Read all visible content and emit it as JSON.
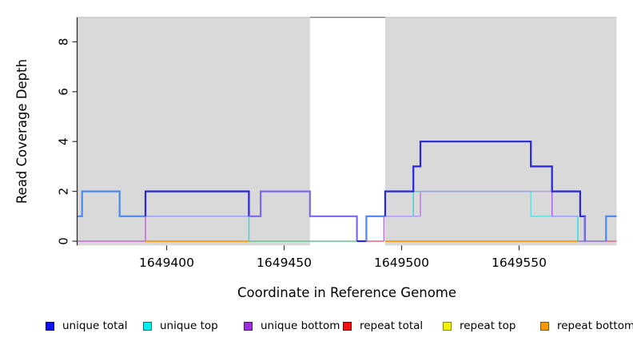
{
  "chart_data": {
    "type": "line",
    "subtype": "step-coverage-plot",
    "title": "",
    "xlabel": "Coordinate in Reference Genome",
    "ylabel": "Read Coverage Depth",
    "x_ticks": [
      1649400,
      1649450,
      1649500,
      1649550
    ],
    "x_tick_labels": [
      "1649400",
      "1649450",
      "1649500",
      "1649550"
    ],
    "y_ticks": [
      0,
      2,
      4,
      6,
      8
    ],
    "y_tick_labels": [
      "0",
      "2",
      "4",
      "6",
      "8"
    ],
    "xlim": [
      1649362,
      1649591.5
    ],
    "ylim": [
      0,
      9
    ],
    "grid": false,
    "legend_position": "bottom",
    "highlight_regions": [
      {
        "name": "shaded-left",
        "x_start": 1649362,
        "x_end": 1649461,
        "color": "#d9d9d9"
      },
      {
        "name": "shaded-right",
        "x_start": 1649493,
        "x_end": 1649591.5,
        "color": "#d9d9d9"
      }
    ],
    "series": [
      {
        "name": "unique total",
        "color": "#1111ee",
        "steps": [
          [
            1649362,
            1
          ],
          [
            1649364,
            2
          ],
          [
            1649380,
            1
          ],
          [
            1649391,
            2
          ],
          [
            1649435,
            1
          ],
          [
            1649440,
            2
          ],
          [
            1649461,
            1
          ],
          [
            1649481,
            0
          ],
          [
            1649485,
            1
          ],
          [
            1649493,
            2
          ],
          [
            1649505,
            3
          ],
          [
            1649508,
            4
          ],
          [
            1649555,
            3
          ],
          [
            1649564,
            2
          ],
          [
            1649576,
            1
          ],
          [
            1649578,
            0
          ],
          [
            1649587,
            1
          ],
          [
            1649592,
            1
          ]
        ]
      },
      {
        "name": "unique top",
        "color": "#00eeee",
        "steps": [
          [
            1649362,
            1
          ],
          [
            1649364,
            2
          ],
          [
            1649380,
            1
          ],
          [
            1649435,
            0
          ],
          [
            1649485,
            1
          ],
          [
            1649505,
            2
          ],
          [
            1649555,
            1
          ],
          [
            1649575,
            0
          ],
          [
            1649587,
            1
          ],
          [
            1649592,
            1
          ]
        ]
      },
      {
        "name": "unique bottom",
        "color": "#9b30d9",
        "steps": [
          [
            1649362,
            0
          ],
          [
            1649391,
            1
          ],
          [
            1649440,
            2
          ],
          [
            1649461,
            1
          ],
          [
            1649481,
            0
          ],
          [
            1649493,
            1
          ],
          [
            1649508,
            2
          ],
          [
            1649564,
            1
          ],
          [
            1649578,
            0
          ],
          [
            1649592,
            0
          ]
        ]
      },
      {
        "name": "repeat total",
        "color": "#ee1111",
        "steps": [
          [
            1649362,
            0
          ],
          [
            1649592,
            0
          ]
        ]
      },
      {
        "name": "repeat top",
        "color": "#f2f200",
        "steps": [
          [
            1649362,
            0
          ],
          [
            1649592,
            0
          ]
        ]
      },
      {
        "name": "repeat bottom",
        "color": "#f59b00",
        "steps": [
          [
            1649362,
            0
          ],
          [
            1649592,
            0
          ]
        ]
      }
    ],
    "legend_entries": [
      {
        "label": "unique total",
        "fill": "#1111ee",
        "border": "#000088"
      },
      {
        "label": "unique top",
        "fill": "#00eeee",
        "border": "#007777"
      },
      {
        "label": "unique bottom",
        "fill": "#9b30d9",
        "border": "#551177"
      },
      {
        "label": "repeat total",
        "fill": "#ee1111",
        "border": "#770000"
      },
      {
        "label": "repeat top",
        "fill": "#f2f200",
        "border": "#888800"
      },
      {
        "label": "repeat bottom",
        "fill": "#f59b00",
        "border": "#885500"
      }
    ]
  },
  "render": {
    "axis_color": "#222222",
    "tick_color": "#333333",
    "text_color": "#000000",
    "box_top_gap_color": "#6e6e6e",
    "box_top_faint_color": "#c0c0c0",
    "segments": [
      {
        "c": "#c869d6",
        "w": 1.5,
        "pts": [
          [
            1649362,
            0
          ],
          [
            1649391,
            0
          ],
          [
            1649391,
            1
          ]
        ]
      },
      {
        "c": "#ff9800",
        "w": 1.8,
        "pts": [
          [
            1649391,
            0
          ],
          [
            1649435,
            0
          ]
        ]
      },
      {
        "c": "#63c98c",
        "w": 1.5,
        "pts": [
          [
            1649435,
            0
          ],
          [
            1649481,
            0
          ]
        ]
      },
      {
        "c": "#e8618c",
        "w": 1.5,
        "pts": [
          [
            1649485,
            0
          ],
          [
            1649492.5,
            0
          ]
        ]
      },
      {
        "c": "#b36be0",
        "w": 1.5,
        "pts": [
          [
            1649492.5,
            0
          ],
          [
            1649492.5,
            1
          ]
        ]
      },
      {
        "c": "#ff9800",
        "w": 1.8,
        "pts": [
          [
            1649493,
            0
          ],
          [
            1649575,
            0
          ]
        ]
      },
      {
        "c": "#8669e8",
        "w": 1.6,
        "pts": [
          [
            1649575,
            0
          ],
          [
            1649587,
            0
          ]
        ]
      },
      {
        "c": "#e8618c",
        "w": 1.5,
        "pts": [
          [
            1649587,
            0
          ],
          [
            1649591.5,
            0
          ]
        ]
      },
      {
        "c": "#9e9ef2",
        "w": 1.5,
        "pts": [
          [
            1649391,
            1
          ],
          [
            1649435,
            1
          ]
        ]
      },
      {
        "c": "#b39df2",
        "w": 1.5,
        "pts": [
          [
            1649493,
            1
          ],
          [
            1649508,
            1
          ]
        ]
      },
      {
        "c": "#bb77e0",
        "w": 1.5,
        "pts": [
          [
            1649508,
            1
          ],
          [
            1649508,
            2
          ]
        ]
      },
      {
        "c": "#2edcdc",
        "w": 1.5,
        "pts": [
          [
            1649435,
            0
          ],
          [
            1649435,
            1
          ]
        ]
      },
      {
        "c": "#2edcdc",
        "w": 1.5,
        "pts": [
          [
            1649505,
            1
          ],
          [
            1649505,
            2
          ],
          [
            1649508,
            2
          ]
        ]
      },
      {
        "c": "#9e9ef2",
        "w": 1.7,
        "pts": [
          [
            1649508,
            2
          ],
          [
            1649555,
            2
          ]
        ]
      },
      {
        "c": "#b49df0",
        "w": 1.5,
        "pts": [
          [
            1649555,
            2
          ],
          [
            1649564,
            2
          ]
        ]
      },
      {
        "c": "#5fe0e0",
        "w": 1.5,
        "pts": [
          [
            1649555,
            2
          ],
          [
            1649555,
            1
          ],
          [
            1649564,
            1
          ]
        ]
      },
      {
        "c": "#9e9ef2",
        "w": 1.5,
        "pts": [
          [
            1649564,
            1
          ],
          [
            1649575,
            1
          ]
        ]
      },
      {
        "c": "#2edcdc",
        "w": 1.5,
        "pts": [
          [
            1649575,
            1
          ],
          [
            1649575,
            0
          ]
        ]
      },
      {
        "c": "#a863e8",
        "w": 1.5,
        "pts": [
          [
            1649564,
            2
          ],
          [
            1649564,
            1
          ]
        ]
      },
      {
        "c": "#4b87ee",
        "w": 2.2,
        "pts": [
          [
            1649362,
            1
          ],
          [
            1649364,
            1
          ],
          [
            1649364,
            2
          ],
          [
            1649380,
            2
          ],
          [
            1649380,
            1
          ],
          [
            1649391,
            1
          ]
        ]
      },
      {
        "c": "#2626dd",
        "w": 2.2,
        "pts": [
          [
            1649391,
            1
          ],
          [
            1649391,
            2
          ],
          [
            1649435,
            2
          ],
          [
            1649435,
            1
          ]
        ]
      },
      {
        "c": "#7b68ee",
        "w": 2.2,
        "pts": [
          [
            1649435,
            1
          ],
          [
            1649440,
            1
          ],
          [
            1649440,
            2
          ],
          [
            1649461,
            2
          ],
          [
            1649461,
            1
          ],
          [
            1649481,
            1
          ],
          [
            1649481,
            0
          ]
        ]
      },
      {
        "c": "#2626dd",
        "w": 2.2,
        "pts": [
          [
            1649481,
            0
          ],
          [
            1649485,
            0
          ]
        ]
      },
      {
        "c": "#4b87ee",
        "w": 2.2,
        "pts": [
          [
            1649485,
            0
          ],
          [
            1649485,
            1
          ],
          [
            1649493,
            1
          ]
        ]
      },
      {
        "c": "#2626dd",
        "w": 2.2,
        "pts": [
          [
            1649493,
            1
          ],
          [
            1649493,
            2
          ],
          [
            1649505,
            2
          ],
          [
            1649505,
            3
          ],
          [
            1649508,
            3
          ],
          [
            1649508,
            4
          ],
          [
            1649555,
            4
          ],
          [
            1649555,
            3
          ],
          [
            1649564,
            3
          ],
          [
            1649564,
            2
          ],
          [
            1649576,
            2
          ],
          [
            1649576,
            1
          ],
          [
            1649578,
            1
          ],
          [
            1649578,
            0
          ]
        ]
      },
      {
        "c": "#7b68ee",
        "w": 2.0,
        "pts": [
          [
            1649578,
            1
          ],
          [
            1649578,
            0
          ]
        ]
      },
      {
        "c": "#4b87ee",
        "w": 2.2,
        "pts": [
          [
            1649587,
            0
          ],
          [
            1649587,
            1
          ],
          [
            1649591.5,
            1
          ]
        ]
      }
    ]
  }
}
